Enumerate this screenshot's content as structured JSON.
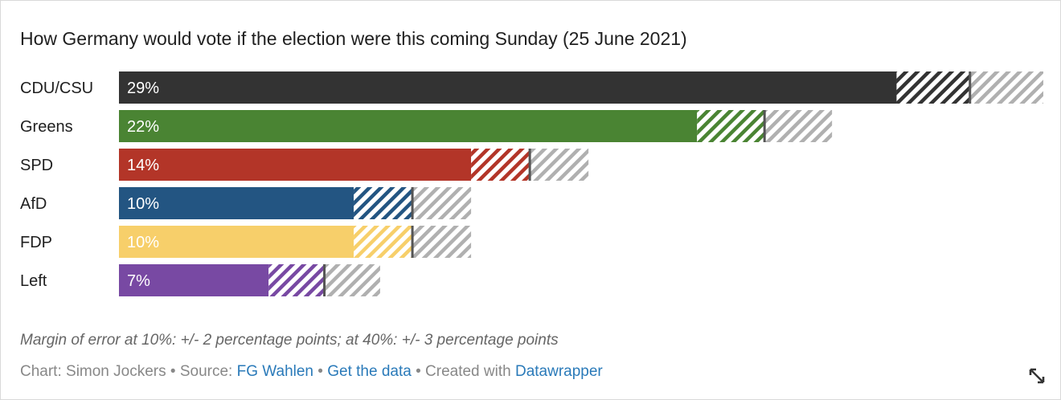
{
  "title": "How Germany would vote if the election were this coming Sunday (25 June 2021)",
  "note": "Margin of error at 10%: +/- 2 percentage points; at 40%: +/- 3 percentage points",
  "credits": {
    "chart_prefix": "Chart: Simon Jockers",
    "sep": " • ",
    "source_prefix": "Source: ",
    "source_link": "FG Wahlen",
    "data_link": "Get the data",
    "created_prefix": "Created with ",
    "created_link": "Datawrapper"
  },
  "icons": {
    "resize": "resize-diagonal-icon"
  },
  "colors": {
    "CDU/CSU": "#333333",
    "Greens": "#4a8433",
    "SPD": "#b33528",
    "AfD": "#235582",
    "FDP": "#f7cf6a",
    "Left": "#7849a3",
    "error_band": "#b0b0b0"
  },
  "chart_data": {
    "type": "bar",
    "orientation": "horizontal",
    "categories": [
      "CDU/CSU",
      "Greens",
      "SPD",
      "AfD",
      "FDP",
      "Left"
    ],
    "values": [
      29,
      22,
      14,
      10,
      10,
      7
    ],
    "value_labels": [
      "29%",
      "22%",
      "14%",
      "10%",
      "10%",
      "7%"
    ],
    "margin_of_error": [
      2.5,
      2.3,
      2.0,
      2.0,
      2.0,
      1.9
    ],
    "xlim": [
      0,
      32
    ]
  }
}
